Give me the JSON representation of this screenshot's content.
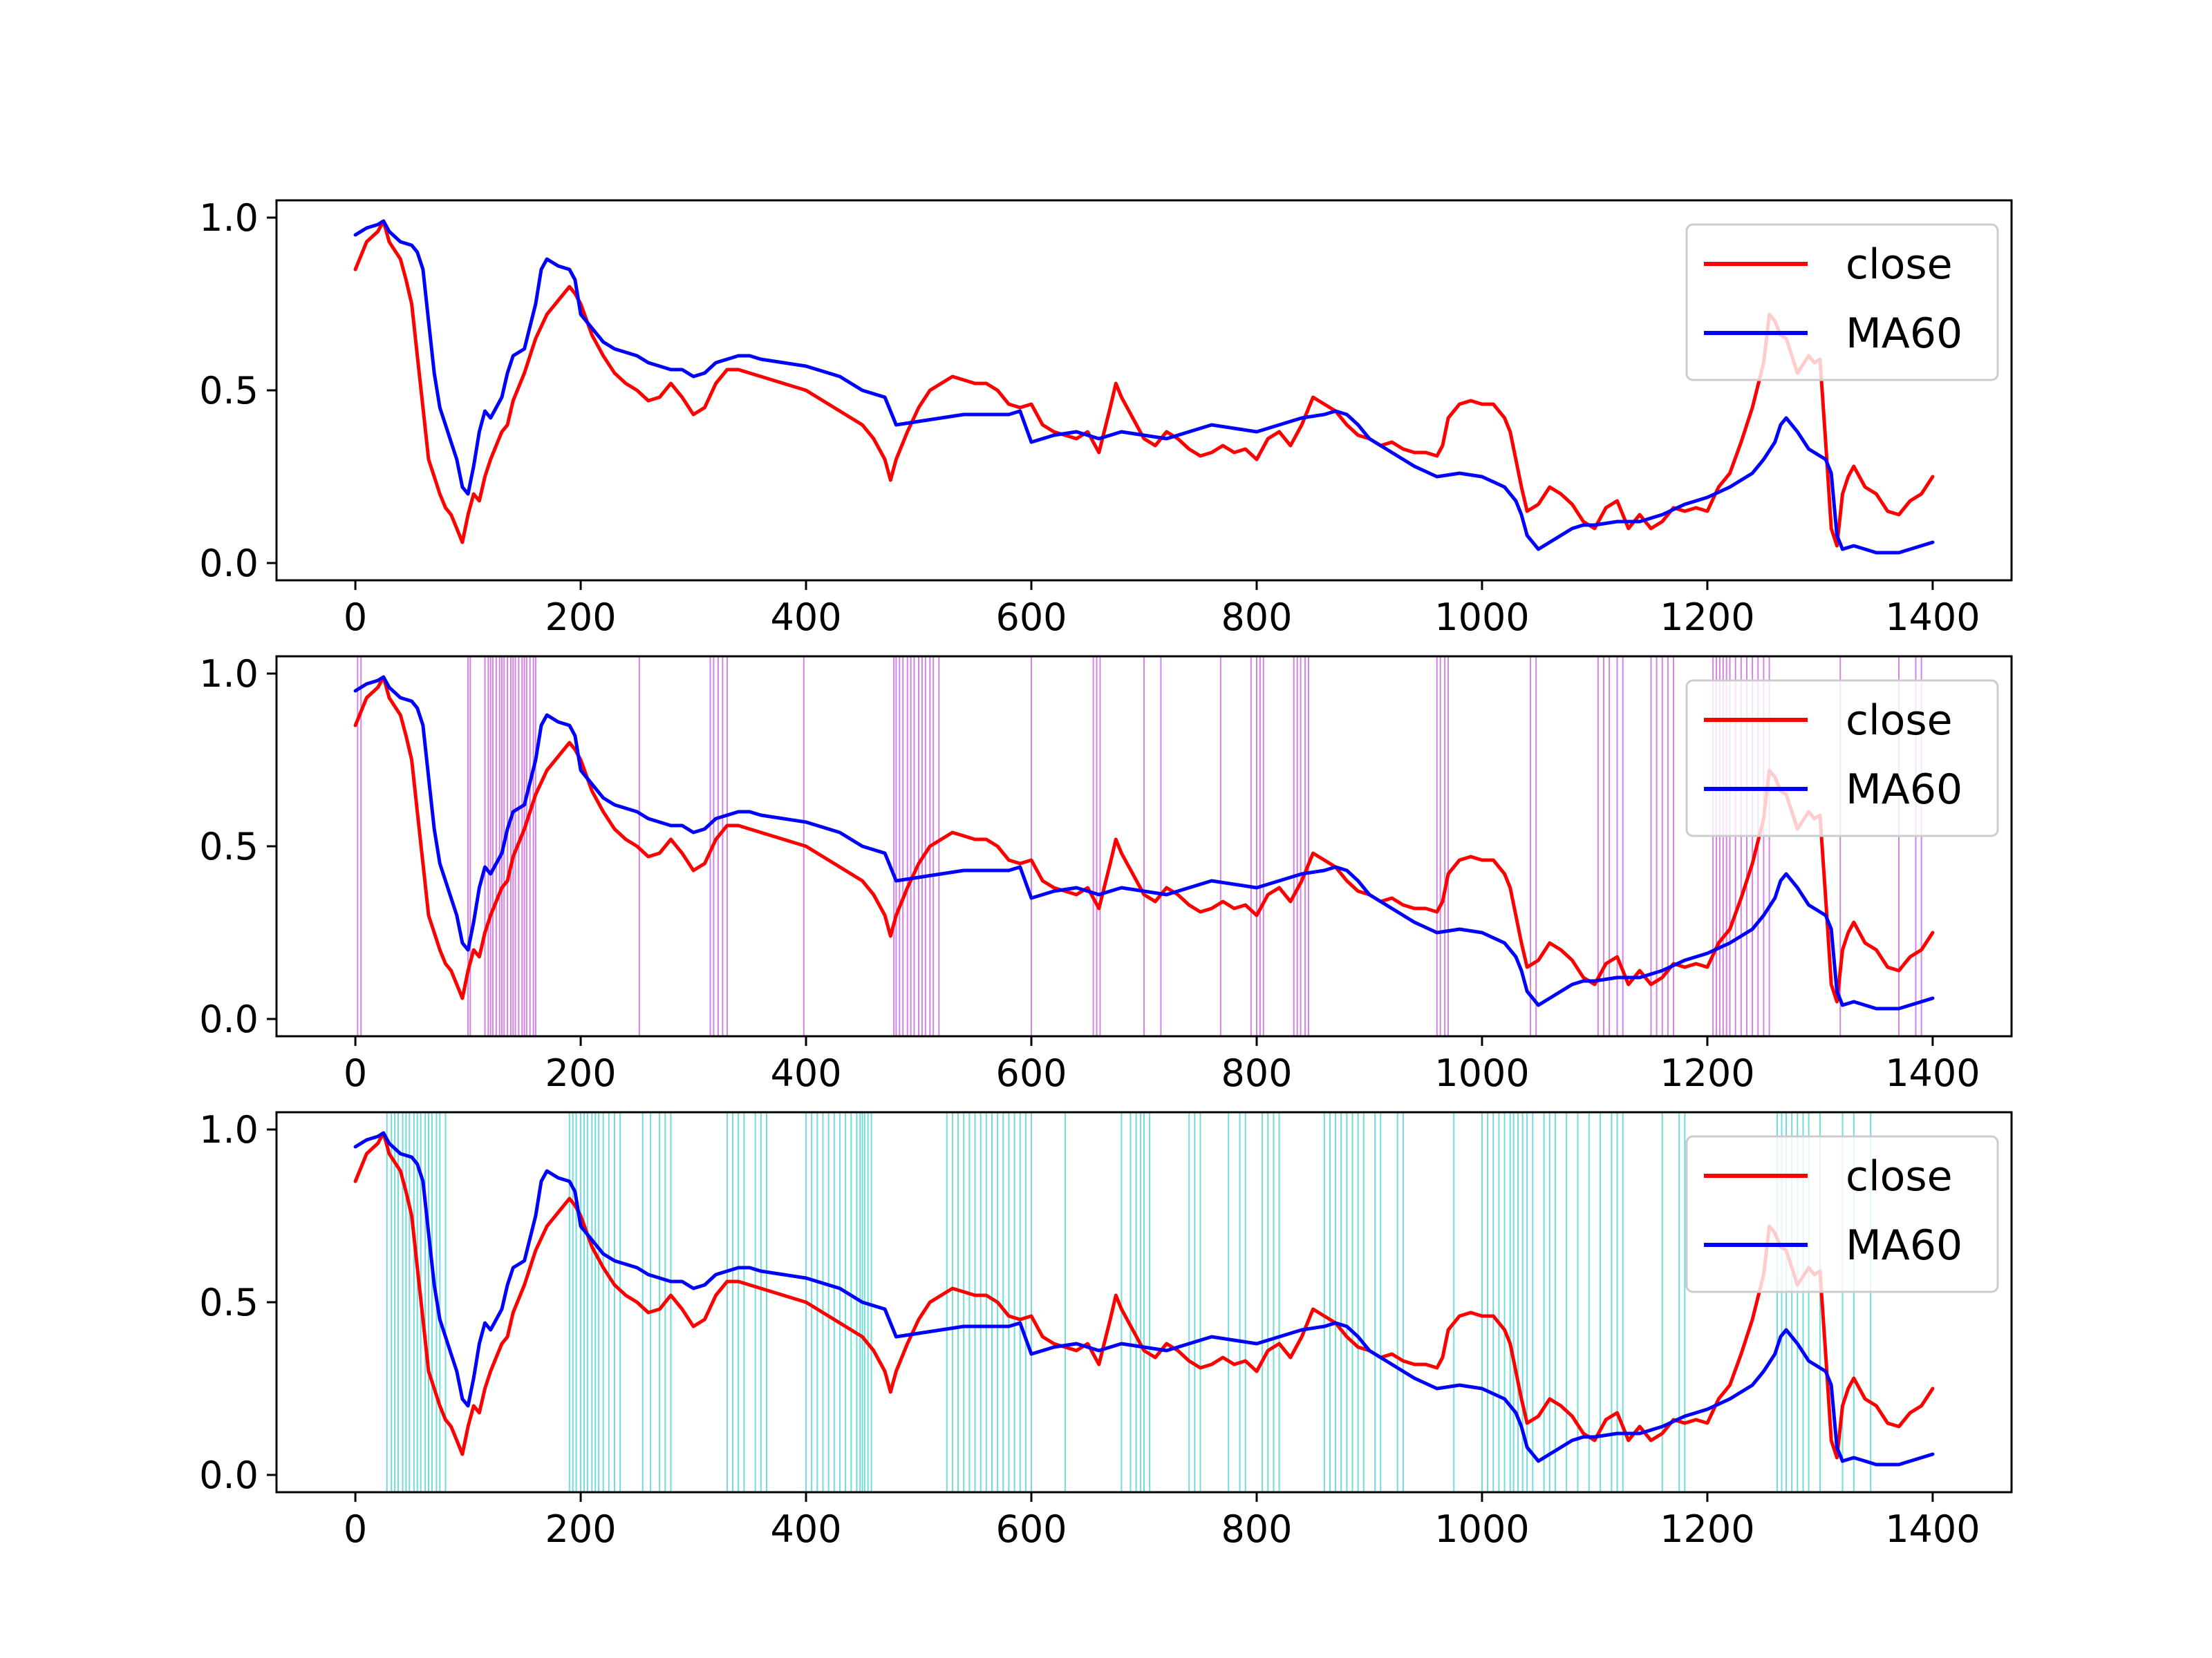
{
  "colors": {
    "close": "#ff0000",
    "ma60": "#0000ff",
    "signal_panel2": "#c864dc",
    "signal_panel3": "#4fd2d2",
    "axes": "#000000",
    "background": "#ffffff"
  },
  "chart_data": [
    {
      "type": "line",
      "title": "",
      "xlabel": "",
      "ylabel": "",
      "xlim": [
        -70,
        1470
      ],
      "ylim": [
        -0.05,
        1.05
      ],
      "xticks": [
        0,
        200,
        400,
        600,
        800,
        1000,
        1200,
        1400
      ],
      "xtick_labels": [
        "0",
        "200",
        "400",
        "600",
        "800",
        "1000",
        "1200",
        "1400"
      ],
      "yticks": [
        0.0,
        0.5,
        1.0
      ],
      "ytick_labels": [
        "0.0",
        "0.5",
        "1.0"
      ],
      "grid": false,
      "legend": {
        "position": "top-right",
        "entries": [
          "close",
          "MA60"
        ]
      },
      "series": [
        {
          "name": "close",
          "color": "#ff0000",
          "x": [
            0,
            10,
            20,
            25,
            30,
            40,
            45,
            50,
            55,
            60,
            65,
            70,
            75,
            80,
            85,
            90,
            95,
            100,
            105,
            110,
            115,
            120,
            125,
            130,
            135,
            140,
            150,
            160,
            170,
            180,
            190,
            195,
            200,
            210,
            220,
            230,
            240,
            250,
            260,
            270,
            280,
            290,
            300,
            310,
            320,
            330,
            340,
            350,
            360,
            380,
            400,
            410,
            420,
            430,
            440,
            450,
            460,
            470,
            475,
            480,
            490,
            500,
            510,
            520,
            530,
            540,
            550,
            560,
            570,
            580,
            590,
            600,
            610,
            620,
            630,
            640,
            650,
            660,
            670,
            675,
            680,
            690,
            700,
            710,
            720,
            730,
            740,
            750,
            760,
            770,
            780,
            790,
            800,
            810,
            820,
            830,
            840,
            850,
            860,
            870,
            880,
            890,
            900,
            910,
            920,
            930,
            940,
            950,
            960,
            965,
            970,
            980,
            990,
            1000,
            1010,
            1020,
            1025,
            1030,
            1035,
            1040,
            1050,
            1060,
            1070,
            1080,
            1090,
            1100,
            1110,
            1120,
            1130,
            1140,
            1150,
            1160,
            1170,
            1180,
            1190,
            1200,
            1210,
            1220,
            1230,
            1240,
            1250,
            1255,
            1260,
            1265,
            1270,
            1275,
            1280,
            1290,
            1295,
            1300,
            1305,
            1310,
            1315,
            1320,
            1325,
            1330,
            1340,
            1350,
            1360,
            1370,
            1380,
            1390,
            1400
          ],
          "y": [
            0.85,
            0.93,
            0.96,
            0.99,
            0.93,
            0.88,
            0.82,
            0.75,
            0.6,
            0.45,
            0.3,
            0.25,
            0.2,
            0.16,
            0.14,
            0.1,
            0.06,
            0.14,
            0.2,
            0.18,
            0.25,
            0.3,
            0.34,
            0.38,
            0.4,
            0.47,
            0.55,
            0.65,
            0.72,
            0.76,
            0.8,
            0.78,
            0.75,
            0.66,
            0.6,
            0.55,
            0.52,
            0.5,
            0.47,
            0.48,
            0.52,
            0.48,
            0.43,
            0.45,
            0.52,
            0.56,
            0.56,
            0.55,
            0.54,
            0.52,
            0.5,
            0.48,
            0.46,
            0.44,
            0.42,
            0.4,
            0.36,
            0.3,
            0.24,
            0.3,
            0.38,
            0.45,
            0.5,
            0.52,
            0.54,
            0.53,
            0.52,
            0.52,
            0.5,
            0.46,
            0.45,
            0.46,
            0.4,
            0.38,
            0.37,
            0.36,
            0.38,
            0.32,
            0.45,
            0.52,
            0.48,
            0.42,
            0.36,
            0.34,
            0.38,
            0.36,
            0.33,
            0.31,
            0.32,
            0.34,
            0.32,
            0.33,
            0.3,
            0.36,
            0.38,
            0.34,
            0.4,
            0.48,
            0.46,
            0.44,
            0.4,
            0.37,
            0.36,
            0.34,
            0.35,
            0.33,
            0.32,
            0.32,
            0.31,
            0.34,
            0.42,
            0.46,
            0.47,
            0.46,
            0.46,
            0.42,
            0.38,
            0.3,
            0.22,
            0.15,
            0.17,
            0.22,
            0.2,
            0.17,
            0.12,
            0.1,
            0.16,
            0.18,
            0.1,
            0.14,
            0.1,
            0.12,
            0.16,
            0.15,
            0.16,
            0.15,
            0.22,
            0.26,
            0.35,
            0.45,
            0.58,
            0.72,
            0.7,
            0.66,
            0.65,
            0.6,
            0.55,
            0.6,
            0.58,
            0.59,
            0.35,
            0.1,
            0.05,
            0.2,
            0.25,
            0.28,
            0.22,
            0.2,
            0.15,
            0.14,
            0.18,
            0.2,
            0.25
          ]
        },
        {
          "name": "MA60",
          "color": "#0000ff",
          "x": [
            0,
            10,
            20,
            25,
            30,
            40,
            50,
            55,
            60,
            65,
            70,
            75,
            80,
            85,
            90,
            95,
            100,
            105,
            110,
            115,
            120,
            130,
            135,
            140,
            150,
            160,
            165,
            170,
            180,
            190,
            195,
            200,
            210,
            220,
            230,
            240,
            250,
            260,
            270,
            280,
            290,
            300,
            310,
            320,
            330,
            340,
            350,
            360,
            380,
            400,
            410,
            420,
            430,
            440,
            450,
            460,
            470,
            480,
            500,
            520,
            540,
            560,
            580,
            590,
            600,
            610,
            620,
            640,
            660,
            680,
            700,
            720,
            740,
            760,
            780,
            800,
            820,
            840,
            860,
            870,
            880,
            890,
            900,
            910,
            920,
            930,
            940,
            960,
            980,
            1000,
            1020,
            1030,
            1035,
            1040,
            1050,
            1060,
            1080,
            1090,
            1100,
            1120,
            1140,
            1160,
            1180,
            1200,
            1220,
            1240,
            1250,
            1260,
            1265,
            1270,
            1280,
            1290,
            1300,
            1305,
            1310,
            1315,
            1320,
            1330,
            1340,
            1350,
            1360,
            1370,
            1380,
            1390,
            1400
          ],
          "y": [
            0.95,
            0.97,
            0.98,
            0.99,
            0.96,
            0.93,
            0.92,
            0.9,
            0.85,
            0.7,
            0.55,
            0.45,
            0.4,
            0.35,
            0.3,
            0.22,
            0.2,
            0.28,
            0.38,
            0.44,
            0.42,
            0.48,
            0.55,
            0.6,
            0.62,
            0.75,
            0.85,
            0.88,
            0.86,
            0.85,
            0.82,
            0.72,
            0.68,
            0.64,
            0.62,
            0.61,
            0.6,
            0.58,
            0.57,
            0.56,
            0.56,
            0.54,
            0.55,
            0.58,
            0.59,
            0.6,
            0.6,
            0.59,
            0.58,
            0.57,
            0.56,
            0.55,
            0.54,
            0.52,
            0.5,
            0.49,
            0.48,
            0.4,
            0.41,
            0.42,
            0.43,
            0.43,
            0.43,
            0.44,
            0.35,
            0.36,
            0.37,
            0.38,
            0.36,
            0.38,
            0.37,
            0.36,
            0.38,
            0.4,
            0.39,
            0.38,
            0.4,
            0.42,
            0.43,
            0.44,
            0.43,
            0.4,
            0.36,
            0.34,
            0.32,
            0.3,
            0.28,
            0.25,
            0.26,
            0.25,
            0.22,
            0.18,
            0.14,
            0.08,
            0.04,
            0.06,
            0.1,
            0.11,
            0.11,
            0.12,
            0.12,
            0.14,
            0.17,
            0.19,
            0.22,
            0.26,
            0.3,
            0.35,
            0.4,
            0.42,
            0.38,
            0.33,
            0.31,
            0.3,
            0.26,
            0.08,
            0.04,
            0.05,
            0.04,
            0.03,
            0.03,
            0.03,
            0.04,
            0.05,
            0.06
          ]
        }
      ],
      "signal_lines": []
    },
    {
      "type": "line",
      "title": "",
      "xlabel": "",
      "ylabel": "",
      "xlim": [
        -70,
        1470
      ],
      "ylim": [
        -0.05,
        1.05
      ],
      "xticks": [
        0,
        200,
        400,
        600,
        800,
        1000,
        1200,
        1400
      ],
      "xtick_labels": [
        "0",
        "200",
        "400",
        "600",
        "800",
        "1000",
        "1200",
        "1400"
      ],
      "yticks": [
        0.0,
        0.5,
        1.0
      ],
      "ytick_labels": [
        "0.0",
        "0.5",
        "1.0"
      ],
      "grid": false,
      "legend": {
        "position": "top-right",
        "entries": [
          "close",
          "MA60"
        ]
      },
      "series": "same as panel 1",
      "signal_color": "#c864dc",
      "signal_lines": [
        2,
        5,
        100,
        102,
        115,
        118,
        120,
        122,
        125,
        128,
        130,
        132,
        135,
        138,
        140,
        142,
        145,
        148,
        150,
        152,
        155,
        158,
        160,
        252,
        315,
        318,
        322,
        326,
        330,
        398,
        478,
        480,
        483,
        486,
        490,
        493,
        496,
        500,
        503,
        506,
        510,
        513,
        518,
        600,
        655,
        658,
        661,
        700,
        715,
        768,
        795,
        800,
        803,
        806,
        833,
        836,
        839,
        843,
        846,
        960,
        963,
        967,
        970,
        1043,
        1048,
        1103,
        1108,
        1113,
        1120,
        1125,
        1150,
        1155,
        1160,
        1165,
        1170,
        1205,
        1208,
        1211,
        1214,
        1217,
        1220,
        1225,
        1230,
        1235,
        1240,
        1245,
        1250,
        1255,
        1318,
        1370,
        1385,
        1390
      ]
    },
    {
      "type": "line",
      "title": "",
      "xlabel": "",
      "ylabel": "",
      "xlim": [
        -70,
        1470
      ],
      "ylim": [
        -0.05,
        1.05
      ],
      "xticks": [
        0,
        200,
        400,
        600,
        800,
        1000,
        1200,
        1400
      ],
      "xtick_labels": [
        "0",
        "200",
        "400",
        "600",
        "800",
        "1000",
        "1200",
        "1400"
      ],
      "yticks": [
        0.0,
        0.5,
        1.0
      ],
      "ytick_labels": [
        "0.0",
        "0.5",
        "1.0"
      ],
      "grid": false,
      "legend": {
        "position": "top-right",
        "entries": [
          "close",
          "MA60"
        ]
      },
      "series": "same as panel 1",
      "signal_color": "#4fd2d2",
      "signal_lines": [
        28,
        32,
        35,
        38,
        42,
        45,
        48,
        52,
        55,
        58,
        62,
        65,
        68,
        72,
        75,
        80,
        190,
        193,
        196,
        200,
        203,
        206,
        210,
        213,
        216,
        220,
        225,
        230,
        235,
        255,
        262,
        270,
        275,
        280,
        330,
        335,
        340,
        345,
        355,
        360,
        365,
        400,
        405,
        410,
        415,
        420,
        425,
        430,
        435,
        440,
        445,
        448,
        450,
        452,
        455,
        458,
        525,
        530,
        535,
        540,
        545,
        550,
        555,
        560,
        565,
        570,
        575,
        580,
        585,
        590,
        595,
        600,
        630,
        680,
        688,
        693,
        697,
        700,
        705,
        740,
        745,
        750,
        775,
        785,
        790,
        805,
        810,
        815,
        820,
        860,
        865,
        870,
        875,
        880,
        885,
        890,
        895,
        905,
        910,
        925,
        930,
        975,
        1000,
        1005,
        1010,
        1015,
        1020,
        1025,
        1028,
        1032,
        1036,
        1040,
        1045,
        1055,
        1060,
        1065,
        1075,
        1085,
        1095,
        1105,
        1115,
        1120,
        1125,
        1160,
        1175,
        1180,
        1262,
        1266,
        1270,
        1275,
        1280,
        1285,
        1290,
        1300,
        1320,
        1330,
        1345
      ]
    }
  ]
}
